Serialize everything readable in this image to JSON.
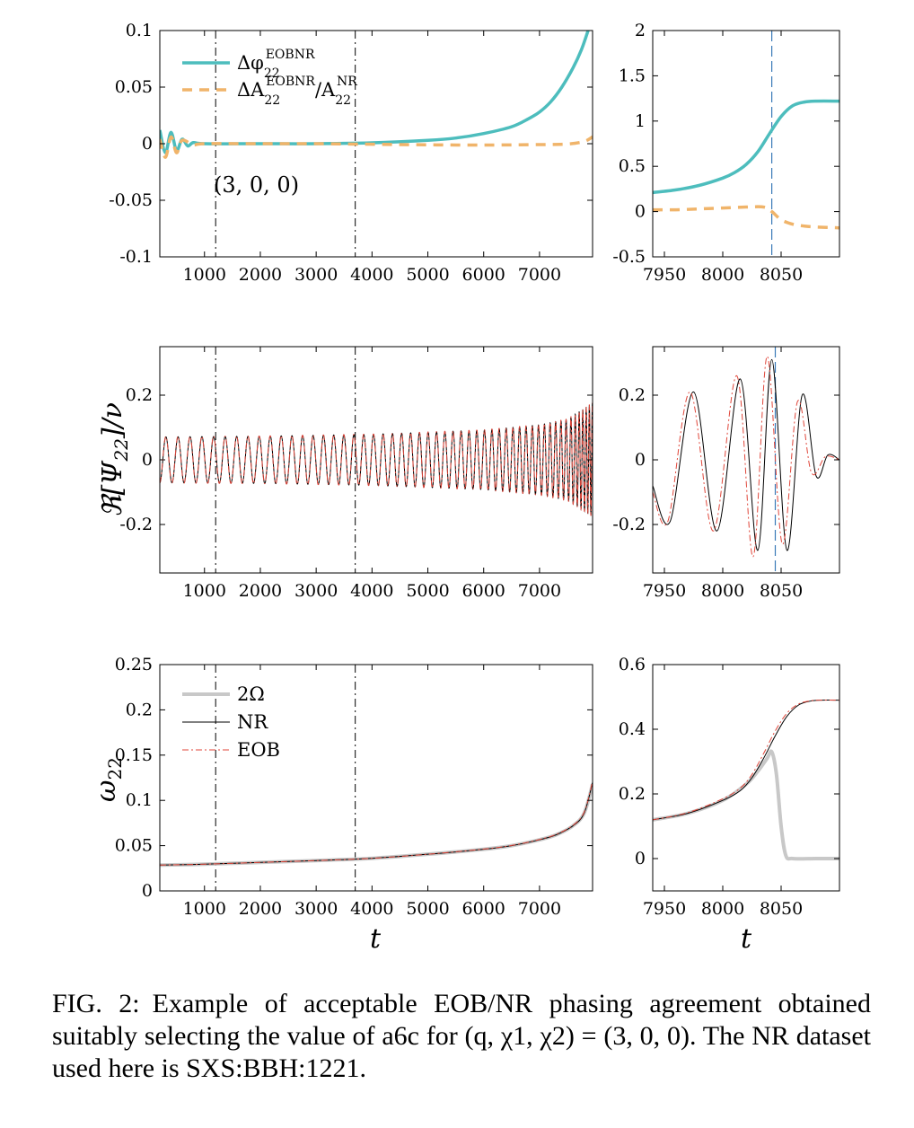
{
  "colors": {
    "phase": "#4dbdbd",
    "amp": "#f0b46a",
    "nr": "#000000",
    "eob": "#e0463a",
    "omega_orbital": "#c8c8c8",
    "merger_line": "#3a7ab8"
  },
  "chart_data": [
    {
      "id": "phase-left",
      "type": "line",
      "xlim": [
        200,
        7950
      ],
      "ylim": [
        -0.1,
        0.1
      ],
      "xticks": [
        1000,
        2000,
        3000,
        4000,
        5000,
        6000,
        7000
      ],
      "yticks": [
        -0.1,
        -0.05,
        0,
        0.05,
        0.1
      ],
      "ytick_labels": [
        "-0.1",
        "-0.05",
        "0",
        "0.05",
        "0.1"
      ],
      "vlines": [
        1200,
        3700
      ],
      "annotation": "(3, 0, 0)",
      "legend": {
        "placement": "top-left",
        "entries": [
          "ΔφEOBNR22",
          "ΔAEOBNR22/ANR22"
        ]
      },
      "series": [
        {
          "name": "ΔφEOBNR22",
          "x": [
            200,
            300,
            400,
            500,
            600,
            700,
            800,
            1000,
            2000,
            3000,
            4000,
            5000,
            5500,
            6000,
            6500,
            6800,
            7000,
            7200,
            7400,
            7600,
            7750,
            7870
          ],
          "y": [
            0.012,
            -0.008,
            0.01,
            -0.006,
            0.004,
            -0.002,
            0.001,
            0,
            0,
            0,
            0.0008,
            0.003,
            0.005,
            0.009,
            0.015,
            0.022,
            0.028,
            0.037,
            0.05,
            0.067,
            0.083,
            0.1
          ]
        },
        {
          "name": "ΔAEOBNR22/ANR22",
          "x": [
            200,
            300,
            400,
            500,
            600,
            800,
            1000,
            2000,
            3000,
            4000,
            5000,
            6000,
            7000,
            7500,
            7800,
            7950
          ],
          "y": [
            0.004,
            -0.012,
            0.006,
            -0.008,
            0.003,
            -0.001,
            0,
            0,
            0,
            -0.0005,
            -0.001,
            -0.0012,
            -0.0008,
            -0.0003,
            0.002,
            0.006
          ]
        }
      ]
    },
    {
      "id": "phase-right",
      "type": "line",
      "xlim": [
        7940,
        8100
      ],
      "ylim": [
        -0.5,
        2
      ],
      "xticks": [
        7950,
        8000,
        8050
      ],
      "yticks": [
        -0.5,
        0,
        0.5,
        1,
        1.5,
        2
      ],
      "ytick_labels": [
        "-0.5",
        "0",
        "0.5",
        "1",
        "1.5",
        "2"
      ],
      "vlines": [
        8042
      ],
      "series": [
        {
          "name": "ΔφEOBNR22",
          "x": [
            7940,
            7960,
            7980,
            8000,
            8010,
            8020,
            8030,
            8040,
            8050,
            8060,
            8070,
            8080,
            8100
          ],
          "y": [
            0.21,
            0.24,
            0.29,
            0.37,
            0.43,
            0.52,
            0.66,
            0.86,
            1.05,
            1.17,
            1.21,
            1.22,
            1.22
          ]
        },
        {
          "name": "ΔAEOBNR22/ANR22",
          "x": [
            7940,
            7960,
            7980,
            8000,
            8020,
            8035,
            8042,
            8050,
            8060,
            8070,
            8080,
            8100
          ],
          "y": [
            0.02,
            0.02,
            0.03,
            0.04,
            0.05,
            0.05,
            0.0,
            -0.09,
            -0.14,
            -0.16,
            -0.17,
            -0.18
          ]
        }
      ]
    },
    {
      "id": "wave-left",
      "type": "line",
      "xlim": [
        200,
        7950
      ],
      "ylim": [
        -0.35,
        0.35
      ],
      "xticks": [
        1000,
        2000,
        3000,
        4000,
        5000,
        6000,
        7000
      ],
      "yticks": [
        -0.2,
        0,
        0.2
      ],
      "ytick_labels": [
        "-0.2",
        "0",
        "0.2"
      ],
      "ylabel": "ℜ[Ψ22]/ν",
      "vlines": [
        1200,
        3700
      ],
      "series": [
        {
          "name": "NR",
          "amplitude": {
            "t": [
              200,
              2000,
              4000,
              6000,
              7000,
              7500,
              7950
            ],
            "a": [
              0.071,
              0.073,
              0.079,
              0.092,
              0.108,
              0.125,
              0.175
            ]
          },
          "omega": {
            "t": [
              200,
              2000,
              4000,
              6000,
              7000,
              7500,
              7950
            ],
            "w": [
              0.0285,
              0.0315,
              0.036,
              0.046,
              0.058,
              0.07,
              0.12
            ]
          }
        },
        {
          "name": "EOB",
          "phase_offset": 0.0
        }
      ]
    },
    {
      "id": "wave-right",
      "type": "line",
      "xlim": [
        7940,
        8100
      ],
      "ylim": [
        -0.35,
        0.35
      ],
      "xticks": [
        7950,
        8000,
        8050
      ],
      "yticks": [
        -0.2,
        0,
        0.2
      ],
      "ytick_labels": [
        "-0.2",
        "0",
        "0.2"
      ],
      "vlines": [
        8045
      ],
      "series": [
        {
          "name": "NR",
          "x": [
            7940,
            7955,
            7975,
            7995,
            8015,
            8030,
            8042,
            8055,
            8068,
            8080,
            8090,
            8100
          ],
          "y": [
            -0.08,
            -0.19,
            0.21,
            -0.22,
            0.25,
            -0.28,
            0.31,
            -0.28,
            0.2,
            -0.05,
            0.015,
            0.0
          ]
        },
        {
          "name": "EOB",
          "x": [
            7940,
            7953,
            7972,
            7992,
            8012,
            8026,
            8038,
            8051,
            8064,
            8076,
            8088,
            8100
          ],
          "y": [
            -0.1,
            -0.19,
            0.21,
            -0.22,
            0.26,
            -0.3,
            0.32,
            -0.26,
            0.18,
            -0.04,
            0.01,
            0.0
          ]
        }
      ]
    },
    {
      "id": "omega-left",
      "type": "line",
      "xlim": [
        200,
        7950
      ],
      "ylim": [
        0,
        0.25
      ],
      "xticks": [
        1000,
        2000,
        3000,
        4000,
        5000,
        6000,
        7000
      ],
      "yticks": [
        0,
        0.05,
        0.1,
        0.15,
        0.2,
        0.25
      ],
      "ytick_labels": [
        "0",
        "0.05",
        "0.1",
        "0.15",
        "0.2",
        "0.25"
      ],
      "xlabel": "t",
      "ylabel": "ω22",
      "vlines": [
        1200,
        3700
      ],
      "legend": {
        "placement": "top-left",
        "entries": [
          "2Ω",
          "NR",
          "EOB"
        ]
      },
      "series": [
        {
          "name": "2Ω",
          "x": [
            200,
            1000,
            2000,
            3000,
            4000,
            5000,
            6000,
            6500,
            7000,
            7300,
            7600,
            7800,
            7950
          ],
          "y": [
            0.0285,
            0.0295,
            0.0315,
            0.0335,
            0.036,
            0.0405,
            0.046,
            0.05,
            0.0565,
            0.062,
            0.072,
            0.086,
            0.118
          ]
        },
        {
          "name": "NR",
          "x": [
            200,
            1000,
            2000,
            3000,
            4000,
            5000,
            6000,
            6500,
            7000,
            7300,
            7600,
            7800,
            7950
          ],
          "y": [
            0.0285,
            0.0295,
            0.0315,
            0.0335,
            0.036,
            0.0405,
            0.046,
            0.05,
            0.0565,
            0.062,
            0.072,
            0.086,
            0.12
          ]
        },
        {
          "name": "EOB",
          "x": [
            200,
            1000,
            2000,
            3000,
            4000,
            5000,
            6000,
            6500,
            7000,
            7300,
            7600,
            7800,
            7950
          ],
          "y": [
            0.0285,
            0.0295,
            0.0315,
            0.0335,
            0.036,
            0.0405,
            0.0462,
            0.0502,
            0.0568,
            0.0625,
            0.0725,
            0.087,
            0.121
          ]
        }
      ]
    },
    {
      "id": "omega-right",
      "type": "line",
      "xlim": [
        7940,
        8100
      ],
      "ylim": [
        -0.1,
        0.6
      ],
      "xticks": [
        7950,
        8000,
        8050
      ],
      "yticks": [
        0,
        0.2,
        0.4,
        0.6
      ],
      "ytick_labels": [
        "0",
        "0.2",
        "0.4",
        "0.6"
      ],
      "xlabel": "t",
      "series": [
        {
          "name": "2Ω",
          "x": [
            7940,
            7970,
            8000,
            8020,
            8030,
            8038,
            8042,
            8046,
            8050,
            8054,
            8060,
            8080,
            8100
          ],
          "y": [
            0.12,
            0.14,
            0.18,
            0.23,
            0.27,
            0.31,
            0.33,
            0.26,
            0.1,
            0.01,
            0.0,
            0.0,
            0.0
          ]
        },
        {
          "name": "NR",
          "x": [
            7940,
            7970,
            8000,
            8015,
            8025,
            8035,
            8045,
            8055,
            8065,
            8075,
            8085,
            8100
          ],
          "y": [
            0.12,
            0.14,
            0.18,
            0.21,
            0.25,
            0.31,
            0.38,
            0.44,
            0.475,
            0.487,
            0.49,
            0.49
          ]
        },
        {
          "name": "EOB",
          "x": [
            7940,
            7970,
            8000,
            8015,
            8025,
            8035,
            8045,
            8055,
            8065,
            8075,
            8085,
            8100
          ],
          "y": [
            0.12,
            0.142,
            0.185,
            0.218,
            0.26,
            0.325,
            0.395,
            0.45,
            0.478,
            0.488,
            0.49,
            0.49
          ]
        }
      ]
    }
  ],
  "caption": {
    "number": "FIG. 2:",
    "text": "Example of acceptable EOB/NR phasing agreement obtained suitably selecting the value of a6c for (q, χ1, χ2) = (3, 0, 0). The NR dataset used here is SXS:BBH:1221."
  }
}
